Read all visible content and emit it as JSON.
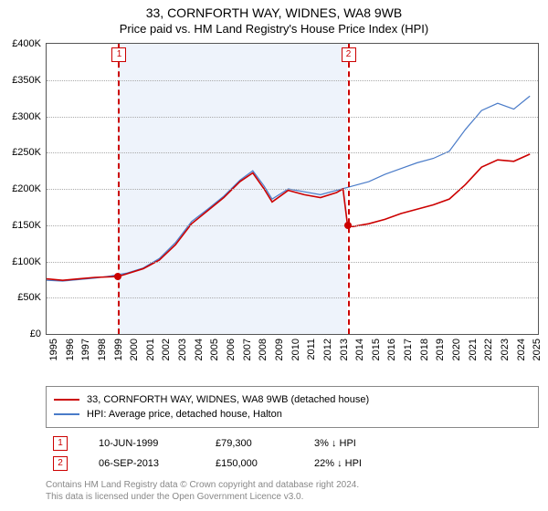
{
  "title": {
    "line1": "33, CORNFORTH WAY, WIDNES, WA8 9WB",
    "line2": "Price paid vs. HM Land Registry's House Price Index (HPI)"
  },
  "chart": {
    "type": "line",
    "xlim": [
      1995,
      2025.5
    ],
    "ylim": [
      0,
      400000
    ],
    "ytick_step": 50000,
    "ytick_labels": [
      "£0",
      "£50K",
      "£100K",
      "£150K",
      "£200K",
      "£250K",
      "£300K",
      "£350K",
      "£400K"
    ],
    "xtick_years": [
      1995,
      1996,
      1997,
      1998,
      1999,
      2000,
      2001,
      2002,
      2003,
      2004,
      2005,
      2006,
      2007,
      2008,
      2009,
      2010,
      2011,
      2012,
      2013,
      2014,
      2015,
      2016,
      2017,
      2018,
      2019,
      2020,
      2021,
      2022,
      2023,
      2024,
      2025
    ],
    "shaded_range": [
      1999.45,
      2013.68
    ],
    "background_color": "#ffffff",
    "shade_color": "#eef3fb",
    "grid_color": "#aaaaaa",
    "series": [
      {
        "name": "33, CORNFORTH WAY, WIDNES, WA8 9WB (detached house)",
        "color": "#cc0000",
        "line_width": 1.6,
        "data": [
          [
            1995,
            76000
          ],
          [
            1996,
            74000
          ],
          [
            1997,
            76000
          ],
          [
            1998,
            78000
          ],
          [
            1999.45,
            79300
          ],
          [
            2000,
            83000
          ],
          [
            2001,
            90000
          ],
          [
            2002,
            102000
          ],
          [
            2003,
            123000
          ],
          [
            2004,
            152000
          ],
          [
            2005,
            170000
          ],
          [
            2006,
            188000
          ],
          [
            2007,
            210000
          ],
          [
            2007.8,
            222000
          ],
          [
            2008.5,
            200000
          ],
          [
            2009,
            182000
          ],
          [
            2010,
            198000
          ],
          [
            2011,
            192000
          ],
          [
            2012,
            188000
          ],
          [
            2013,
            195000
          ],
          [
            2013.4,
            200000
          ],
          [
            2013.68,
            150000
          ],
          [
            2014,
            148000
          ],
          [
            2015,
            152000
          ],
          [
            2016,
            158000
          ],
          [
            2017,
            166000
          ],
          [
            2018,
            172000
          ],
          [
            2019,
            178000
          ],
          [
            2020,
            186000
          ],
          [
            2021,
            206000
          ],
          [
            2022,
            230000
          ],
          [
            2023,
            240000
          ],
          [
            2024,
            238000
          ],
          [
            2025,
            248000
          ]
        ]
      },
      {
        "name": "HPI: Average price, detached house, Halton",
        "color": "#4a7bc8",
        "line_width": 1.2,
        "data": [
          [
            1995,
            74000
          ],
          [
            1996,
            73000
          ],
          [
            1997,
            75000
          ],
          [
            1998,
            77000
          ],
          [
            1999,
            80000
          ],
          [
            2000,
            84000
          ],
          [
            2001,
            91000
          ],
          [
            2002,
            104000
          ],
          [
            2003,
            126000
          ],
          [
            2004,
            155000
          ],
          [
            2005,
            172000
          ],
          [
            2006,
            190000
          ],
          [
            2007,
            212000
          ],
          [
            2007.8,
            225000
          ],
          [
            2008.5,
            204000
          ],
          [
            2009,
            186000
          ],
          [
            2010,
            200000
          ],
          [
            2011,
            196000
          ],
          [
            2012,
            192000
          ],
          [
            2013,
            198000
          ],
          [
            2014,
            204000
          ],
          [
            2015,
            210000
          ],
          [
            2016,
            220000
          ],
          [
            2017,
            228000
          ],
          [
            2018,
            236000
          ],
          [
            2019,
            242000
          ],
          [
            2020,
            252000
          ],
          [
            2021,
            282000
          ],
          [
            2022,
            308000
          ],
          [
            2023,
            318000
          ],
          [
            2024,
            310000
          ],
          [
            2025,
            328000
          ]
        ]
      }
    ],
    "markers": [
      {
        "id": "1",
        "x": 1999.45,
        "y": 79300
      },
      {
        "id": "2",
        "x": 2013.68,
        "y": 150000
      }
    ]
  },
  "legend": {
    "items": [
      {
        "color": "#cc0000",
        "label": "33, CORNFORTH WAY, WIDNES, WA8 9WB (detached house)"
      },
      {
        "color": "#4a7bc8",
        "label": "HPI: Average price, detached house, Halton"
      }
    ]
  },
  "transactions": [
    {
      "id": "1",
      "date": "10-JUN-1999",
      "price": "£79,300",
      "diff": "3% ↓ HPI"
    },
    {
      "id": "2",
      "date": "06-SEP-2013",
      "price": "£150,000",
      "diff": "22% ↓ HPI"
    }
  ],
  "footer": {
    "line1": "Contains HM Land Registry data © Crown copyright and database right 2024.",
    "line2": "This data is licensed under the Open Government Licence v3.0."
  }
}
